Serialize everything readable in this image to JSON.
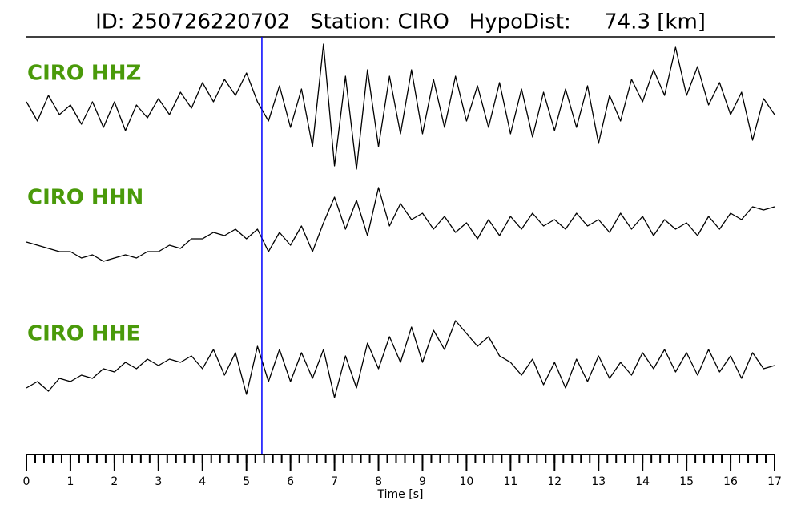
{
  "chart_data": {
    "type": "line",
    "title": "ID: 250726220702   Station: CIRO   HypoDist:     74.3 [km]",
    "xlabel": "Time [s]",
    "xlim": [
      0,
      17
    ],
    "xticks": [
      0,
      1,
      2,
      3,
      4,
      5,
      6,
      7,
      8,
      9,
      10,
      11,
      12,
      13,
      14,
      15,
      16,
      17
    ],
    "xminor_step": 0.2,
    "ylim": [
      -1,
      1
    ],
    "label_color": "#4a9a0a",
    "pick_time": 5.35,
    "pick_color": "#0000ff",
    "x": [
      0,
      0.25,
      0.5,
      0.75,
      1,
      1.25,
      1.5,
      1.75,
      2,
      2.25,
      2.5,
      2.75,
      3,
      3.25,
      3.5,
      3.75,
      4,
      4.25,
      4.5,
      4.75,
      5,
      5.25,
      5.5,
      5.75,
      6,
      6.25,
      6.5,
      6.75,
      7,
      7.25,
      7.5,
      7.75,
      8,
      8.25,
      8.5,
      8.75,
      9,
      9.25,
      9.5,
      9.75,
      10,
      10.25,
      10.5,
      10.75,
      11,
      11.25,
      11.5,
      11.75,
      12,
      12.25,
      12.5,
      12.75,
      13,
      13.25,
      13.5,
      13.75,
      14,
      14.25,
      14.5,
      14.75,
      15,
      15.25,
      15.5,
      15.75,
      16,
      16.25,
      16.5,
      16.75,
      17
    ],
    "series": [
      {
        "name": "CIRO HHZ",
        "color": "#000000",
        "values": [
          0.1,
          -0.2,
          0.2,
          -0.1,
          0.05,
          -0.25,
          0.1,
          -0.3,
          0.1,
          -0.35,
          0.05,
          -0.15,
          0.15,
          -0.1,
          0.25,
          0.0,
          0.4,
          0.1,
          0.45,
          0.2,
          0.55,
          0.1,
          -0.2,
          0.35,
          -0.3,
          0.3,
          -0.6,
          1.0,
          -0.9,
          0.5,
          -0.95,
          0.6,
          -0.6,
          0.5,
          -0.4,
          0.6,
          -0.4,
          0.45,
          -0.3,
          0.5,
          -0.2,
          0.35,
          -0.3,
          0.4,
          -0.4,
          0.3,
          -0.45,
          0.25,
          -0.35,
          0.3,
          -0.3,
          0.35,
          -0.55,
          0.2,
          -0.2,
          0.45,
          0.1,
          0.6,
          0.2,
          0.95,
          0.2,
          0.65,
          0.05,
          0.4,
          -0.1,
          0.25,
          -0.5,
          0.15,
          -0.1
        ]
      },
      {
        "name": "CIRO HHN",
        "color": "#000000",
        "values": [
          -0.15,
          -0.2,
          -0.25,
          -0.3,
          -0.3,
          -0.4,
          -0.35,
          -0.45,
          -0.4,
          -0.35,
          -0.4,
          -0.3,
          -0.3,
          -0.2,
          -0.25,
          -0.1,
          -0.1,
          0.0,
          -0.05,
          0.05,
          -0.1,
          0.05,
          -0.3,
          0.0,
          -0.2,
          0.1,
          -0.3,
          0.15,
          0.55,
          0.05,
          0.5,
          -0.05,
          0.7,
          0.1,
          0.45,
          0.2,
          0.3,
          0.05,
          0.25,
          0.0,
          0.15,
          -0.1,
          0.2,
          -0.05,
          0.25,
          0.05,
          0.3,
          0.1,
          0.2,
          0.05,
          0.3,
          0.1,
          0.2,
          0.0,
          0.3,
          0.05,
          0.25,
          -0.05,
          0.2,
          0.05,
          0.15,
          -0.05,
          0.25,
          0.05,
          0.3,
          0.2,
          0.4,
          0.35,
          0.4
        ]
      },
      {
        "name": "CIRO HHE",
        "color": "#000000",
        "values": [
          -0.3,
          -0.2,
          -0.35,
          -0.15,
          -0.2,
          -0.1,
          -0.15,
          0.0,
          -0.05,
          0.1,
          0.0,
          0.15,
          0.05,
          0.15,
          0.1,
          0.2,
          0.0,
          0.3,
          -0.1,
          0.25,
          -0.4,
          0.35,
          -0.2,
          0.3,
          -0.2,
          0.25,
          -0.15,
          0.3,
          -0.45,
          0.2,
          -0.3,
          0.4,
          0.0,
          0.5,
          0.1,
          0.65,
          0.1,
          0.6,
          0.3,
          0.75,
          0.55,
          0.35,
          0.5,
          0.2,
          0.1,
          -0.1,
          0.15,
          -0.25,
          0.1,
          -0.3,
          0.15,
          -0.2,
          0.2,
          -0.15,
          0.1,
          -0.1,
          0.25,
          0.0,
          0.3,
          -0.05,
          0.25,
          -0.1,
          0.3,
          -0.05,
          0.2,
          -0.15,
          0.25,
          0.0,
          0.05
        ]
      }
    ]
  }
}
